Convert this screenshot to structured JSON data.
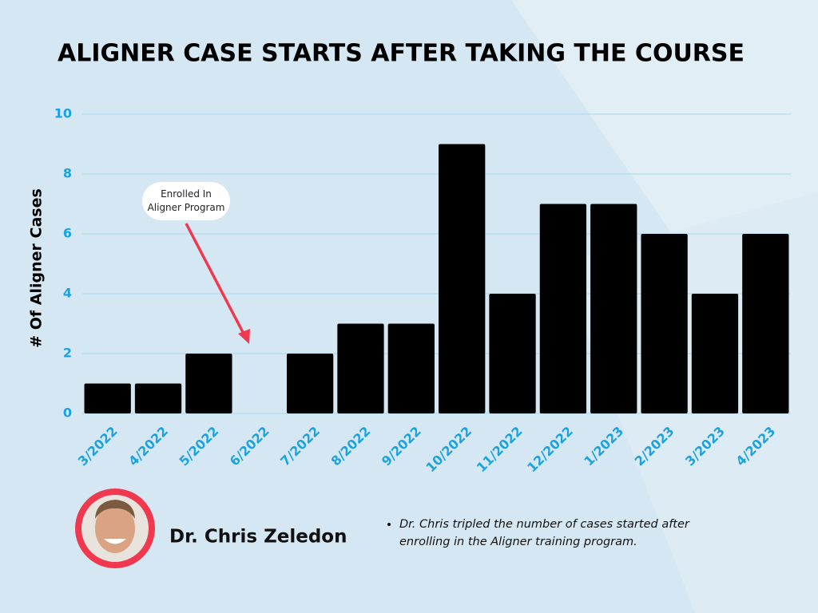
{
  "chart_data": {
    "type": "bar",
    "title": "ALIGNER CASE STARTS AFTER TAKING THE COURSE",
    "y_label": "# Of Aligner Cases",
    "categories": [
      "3/2022",
      "4/2022",
      "5/2022",
      "6/2022",
      "7/2022",
      "8/2022",
      "9/2022",
      "10/2022",
      "11/2022",
      "12/2022",
      "1/2023",
      "2/2023",
      "3/2023",
      "4/2023"
    ],
    "values": [
      1,
      1,
      2,
      0,
      2,
      3,
      3,
      9,
      4,
      7,
      7,
      6,
      4,
      6
    ],
    "color": "#000000",
    "tick_color": "#1aa3e0",
    "ylim": [
      0,
      10
    ],
    "yticks": [
      0,
      2,
      4,
      6,
      8,
      10
    ],
    "grid": true,
    "annotation": "Enrolled In Aligner Program"
  },
  "author": {
    "name": "Dr. Chris Zeledon"
  },
  "notes": [
    "Dr. Chris tripled the number of cases started after enrolling in the Aligner training program."
  ]
}
